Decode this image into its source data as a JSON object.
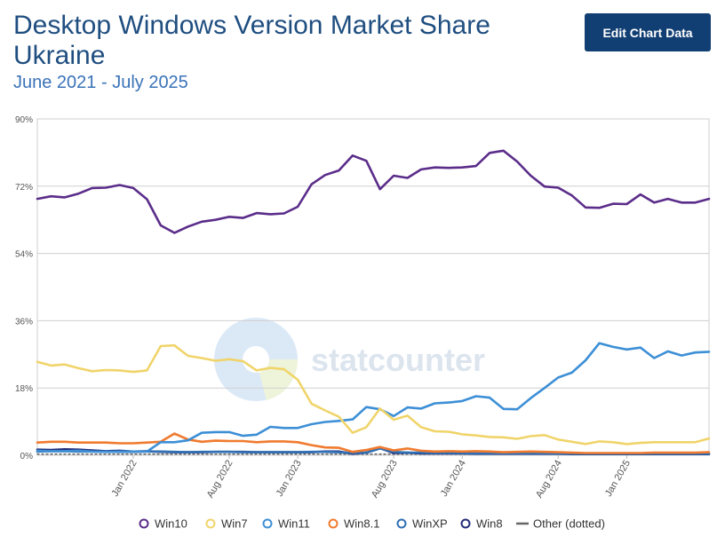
{
  "header": {
    "title_line1": "Desktop Windows Version Market Share",
    "title_line2": "Ukraine",
    "subtitle": "June 2021 - July 2025",
    "edit_button": "Edit Chart Data"
  },
  "watermark": "statcounter",
  "chart_data": {
    "type": "line",
    "title": "Desktop Windows Version Market Share Ukraine",
    "subtitle": "June 2021 - July 2025",
    "x": [
      "2021-06",
      "2021-07",
      "2021-08",
      "2021-09",
      "2021-10",
      "2021-11",
      "2021-12",
      "2022-01",
      "2022-02",
      "2022-03",
      "2022-04",
      "2022-05",
      "2022-06",
      "2022-07",
      "2022-08",
      "2022-09",
      "2022-10",
      "2022-11",
      "2022-12",
      "2023-01",
      "2023-02",
      "2023-03",
      "2023-04",
      "2023-05",
      "2023-06",
      "2023-07",
      "2023-08",
      "2023-09",
      "2023-10",
      "2023-11",
      "2023-12",
      "2024-01",
      "2024-02",
      "2024-03",
      "2024-04",
      "2024-05",
      "2024-06",
      "2024-07",
      "2024-08",
      "2024-09",
      "2024-10",
      "2024-11",
      "2024-12",
      "2025-01",
      "2025-02",
      "2025-03",
      "2025-04",
      "2025-05",
      "2025-06",
      "2025-07"
    ],
    "x_tick_labels": [
      {
        "index": 7,
        "label": "Jan 2022"
      },
      {
        "index": 14,
        "label": "Aug 2022"
      },
      {
        "index": 19,
        "label": "Jan 2023"
      },
      {
        "index": 26,
        "label": "Aug 2023"
      },
      {
        "index": 31,
        "label": "Jan 2024"
      },
      {
        "index": 38,
        "label": "Aug 2024"
      },
      {
        "index": 43,
        "label": "Jan 2025"
      }
    ],
    "y_ticks": [
      "0%",
      "18%",
      "36%",
      "54%",
      "72%",
      "90%"
    ],
    "ylim": [
      0,
      90
    ],
    "grid": true,
    "legend_position": "bottom",
    "series": [
      {
        "name": "Win10",
        "color": "#5b2d8a",
        "dotted": false,
        "values": [
          68.6,
          69.3,
          69.0,
          70.0,
          71.5,
          71.6,
          72.3,
          71.5,
          68.5,
          61.5,
          59.5,
          61.2,
          62.5,
          63.0,
          63.8,
          63.5,
          64.8,
          64.5,
          64.7,
          66.5,
          72.5,
          75.0,
          76.2,
          80.2,
          78.8,
          71.2,
          74.8,
          74.2,
          76.5,
          77.0,
          76.9,
          77.0,
          77.4,
          80.9,
          81.5,
          78.6,
          74.8,
          71.9,
          71.6,
          69.5,
          66.3,
          66.2,
          67.3,
          67.2,
          69.8,
          67.6,
          68.6,
          67.6,
          67.6,
          68.6
        ]
      },
      {
        "name": "Win7",
        "color": "#f0d46a",
        "dotted": false,
        "values": [
          25.0,
          24.0,
          24.3,
          23.3,
          22.5,
          22.8,
          22.7,
          22.3,
          22.7,
          29.2,
          29.4,
          26.6,
          26.0,
          25.3,
          25.7,
          25.2,
          22.7,
          23.4,
          23.0,
          20.2,
          13.8,
          12.0,
          10.3,
          6.0,
          7.5,
          12.5,
          9.5,
          10.6,
          7.5,
          6.4,
          6.3,
          5.6,
          5.3,
          4.9,
          4.8,
          4.4,
          5.1,
          5.4,
          4.2,
          3.6,
          3.0,
          3.7,
          3.5,
          3.0,
          3.3,
          3.5,
          3.5,
          3.5,
          3.5,
          4.5
        ]
      },
      {
        "name": "Win11",
        "color": "#3d8fd6",
        "dotted": false,
        "values": [
          1.2,
          1.1,
          1.1,
          1.2,
          1.0,
          0.9,
          1.0,
          1.0,
          1.0,
          3.5,
          3.5,
          4.0,
          6.0,
          6.2,
          6.2,
          5.2,
          5.5,
          7.6,
          7.3,
          7.3,
          8.3,
          8.9,
          9.2,
          9.6,
          12.9,
          12.3,
          10.5,
          12.8,
          12.5,
          13.9,
          14.1,
          14.5,
          15.8,
          15.4,
          12.4,
          12.3,
          15.3,
          18.0,
          20.8,
          22.1,
          25.4,
          30.0,
          29.0,
          28.3,
          28.8,
          26.0,
          27.8,
          26.7,
          27.5,
          27.7
        ]
      },
      {
        "name": "Win8.1",
        "color": "#f07a2e",
        "dotted": false,
        "values": [
          3.4,
          3.6,
          3.6,
          3.4,
          3.4,
          3.4,
          3.2,
          3.2,
          3.4,
          3.6,
          5.8,
          4.2,
          3.6,
          3.9,
          3.8,
          3.8,
          3.5,
          3.7,
          3.7,
          3.5,
          2.7,
          2.1,
          2.0,
          0.9,
          1.4,
          2.2,
          1.3,
          1.8,
          1.2,
          1.0,
          1.1,
          1.0,
          1.1,
          1.0,
          0.8,
          0.9,
          1.0,
          0.9,
          0.8,
          0.7,
          0.6,
          0.6,
          0.6,
          0.6,
          0.6,
          0.7,
          0.7,
          0.7,
          0.7,
          0.8
        ]
      },
      {
        "name": "WinXP",
        "color": "#2f6fb5",
        "dotted": false,
        "values": [
          1.0,
          1.1,
          1.1,
          1.0,
          1.0,
          1.0,
          0.9,
          0.9,
          1.0,
          1.0,
          0.9,
          0.8,
          0.9,
          0.9,
          0.9,
          0.8,
          0.8,
          0.8,
          0.8,
          0.8,
          0.9,
          0.9,
          0.8,
          0.6,
          0.7,
          1.8,
          0.9,
          0.7,
          0.7,
          0.6,
          0.6,
          0.6,
          0.5,
          0.5,
          0.5,
          0.5,
          0.5,
          0.5,
          0.5,
          0.4,
          0.4,
          0.4,
          0.4,
          0.4,
          0.4,
          0.4,
          0.4,
          0.4,
          0.4,
          0.4
        ]
      },
      {
        "name": "Win8",
        "color": "#232c7a",
        "dotted": false,
        "values": [
          1.5,
          1.4,
          1.6,
          1.5,
          1.3,
          1.1,
          1.2,
          1.0,
          1.1,
          0.9,
          0.8,
          0.8,
          0.8,
          0.9,
          0.9,
          0.9,
          0.8,
          0.8,
          0.8,
          0.8,
          0.8,
          1.0,
          1.0,
          0.4,
          0.7,
          1.9,
          0.6,
          0.7,
          0.5,
          0.5,
          0.5,
          0.5,
          0.4,
          0.4,
          0.4,
          0.4,
          0.4,
          0.4,
          0.4,
          0.3,
          0.3,
          0.3,
          0.3,
          0.3,
          0.3,
          0.3,
          0.3,
          0.3,
          0.3,
          0.3
        ]
      },
      {
        "name": "Other (dotted)",
        "color": "#666666",
        "dotted": true,
        "values": [
          0.3,
          0.3,
          0.3,
          0.3,
          0.3,
          0.3,
          0.3,
          0.3,
          0.3,
          0.3,
          0.3,
          0.3,
          0.3,
          0.3,
          0.3,
          0.3,
          0.3,
          0.3,
          0.3,
          0.3,
          0.3,
          0.3,
          0.3,
          0.3,
          0.3,
          0.3,
          0.3,
          0.3,
          0.3,
          0.3,
          0.3,
          0.3,
          0.3,
          0.3,
          0.3,
          0.3,
          0.3,
          0.3,
          0.3,
          0.3,
          0.3,
          0.3,
          0.3,
          0.3,
          0.3,
          0.3,
          0.3,
          0.3,
          0.3,
          0.3
        ]
      }
    ]
  }
}
